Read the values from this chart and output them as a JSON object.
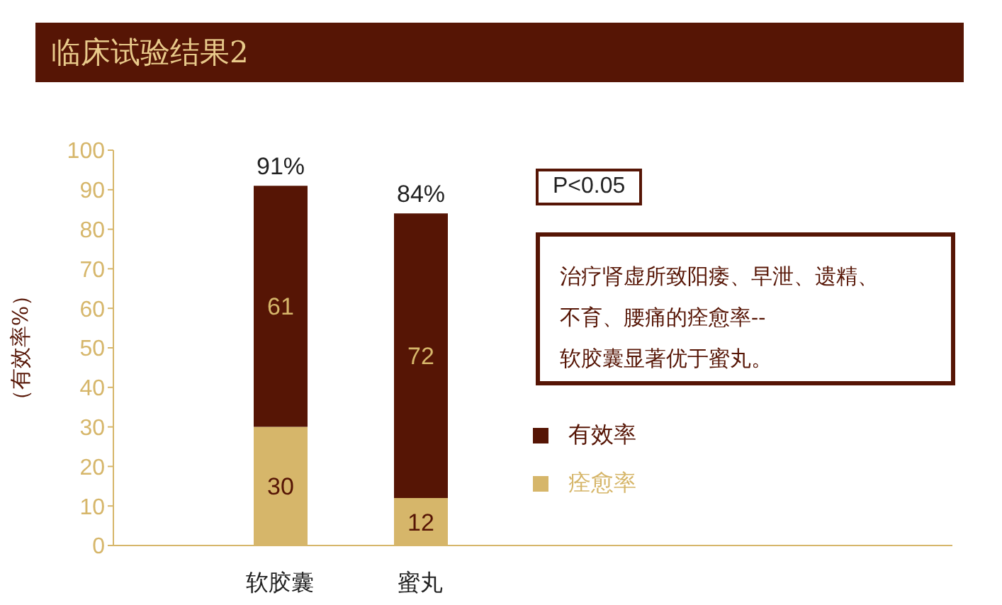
{
  "chart_data": {
    "type": "bar",
    "title": "临床试验结果2",
    "ylabel": "（有效率%）",
    "categories": [
      "软胶囊",
      "蜜丸"
    ],
    "series": [
      {
        "name": "痊愈率",
        "color": "#d6b66a",
        "values": [
          30,
          12
        ]
      },
      {
        "name": "有效率",
        "color": "#561505",
        "values": [
          61,
          72
        ]
      }
    ],
    "stacked": true,
    "data_labels": true,
    "totals": [
      "91%",
      "84%"
    ],
    "ylim": [
      0,
      100
    ],
    "yticks": [
      0,
      10,
      20,
      30,
      40,
      50,
      60,
      70,
      80,
      90,
      100
    ],
    "grid": false,
    "legend": "right",
    "annotations": [
      "P<0.05",
      "治疗肾虚所致阳痿、早泄、遗精、",
      "不育、腰痛的痊愈率--",
      "软胶囊显著优于蜜丸。"
    ]
  }
}
